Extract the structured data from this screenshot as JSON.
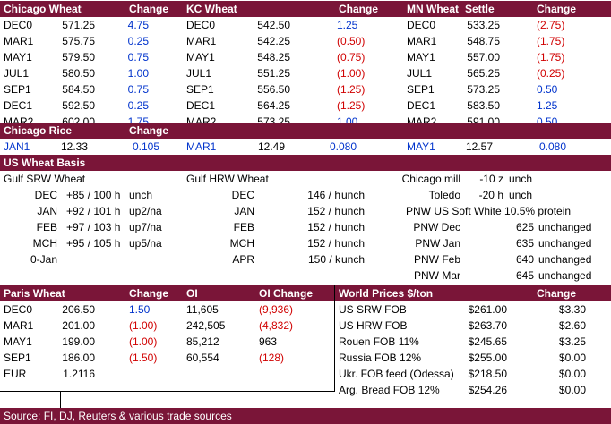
{
  "futures": {
    "headers": [
      "Chicago Wheat",
      "Change",
      "KC Wheat",
      "Change",
      "MN Wheat",
      "Settle",
      "Change"
    ],
    "rows": [
      {
        "c_m": "DEC0",
        "c_p": "571.25",
        "c_ch": "4.75",
        "k_m": "DEC0",
        "k_p": "542.50",
        "k_ch": "1.25",
        "m_m": "DEC0",
        "m_p": "533.25",
        "m_ch": "(2.75)"
      },
      {
        "c_m": "MAR1",
        "c_p": "575.75",
        "c_ch": "0.25",
        "k_m": "MAR1",
        "k_p": "542.25",
        "k_ch": "(0.50)",
        "m_m": "MAR1",
        "m_p": "548.75",
        "m_ch": "(1.75)"
      },
      {
        "c_m": "MAY1",
        "c_p": "579.50",
        "c_ch": "0.75",
        "k_m": "MAY1",
        "k_p": "548.25",
        "k_ch": "(0.75)",
        "m_m": "MAY1",
        "m_p": "557.00",
        "m_ch": "(1.75)"
      },
      {
        "c_m": "JUL1",
        "c_p": "580.50",
        "c_ch": "1.00",
        "k_m": "JUL1",
        "k_p": "551.25",
        "k_ch": "(1.00)",
        "m_m": "JUL1",
        "m_p": "565.25",
        "m_ch": "(0.25)"
      },
      {
        "c_m": "SEP1",
        "c_p": "584.50",
        "c_ch": "0.75",
        "k_m": "SEP1",
        "k_p": "556.50",
        "k_ch": "(1.25)",
        "m_m": "SEP1",
        "m_p": "573.25",
        "m_ch": "0.50"
      },
      {
        "c_m": "DEC1",
        "c_p": "592.50",
        "c_ch": "0.25",
        "k_m": "DEC1",
        "k_p": "564.25",
        "k_ch": "(1.25)",
        "m_m": "DEC1",
        "m_p": "583.50",
        "m_ch": "1.25"
      },
      {
        "c_m": "MAR2",
        "c_p": "602.00",
        "c_ch": "1.75",
        "k_m": "MAR2",
        "k_p": "573.25",
        "k_ch": "1.00",
        "m_m": "MAR2",
        "m_p": "591.00",
        "m_ch": "0.50"
      }
    ]
  },
  "rice": {
    "title": "Chicago Rice",
    "change": "Change",
    "items": [
      {
        "m": "JAN1",
        "p": "12.33",
        "ch": "0.105"
      },
      {
        "m": "MAR1",
        "p": "12.49",
        "ch": "0.080"
      },
      {
        "m": "MAY1",
        "p": "12.57",
        "ch": "0.080"
      }
    ]
  },
  "basis": {
    "title": "US Wheat Basis",
    "gulf_srw_title": "Gulf SRW Wheat",
    "gulf_hrw_title": "Gulf HRW Wheat",
    "srw": [
      {
        "m": "DEC",
        "v": "+85 / 100 h",
        "s": "unch"
      },
      {
        "m": "JAN",
        "v": "+92 / 101 h",
        "s": "up2/na"
      },
      {
        "m": "FEB",
        "v": "+97 / 103 h",
        "s": "up7/na"
      },
      {
        "m": "MCH",
        "v": "+95 / 105 h",
        "s": "up5/na"
      },
      {
        "m": "0-Jan",
        "v": "",
        "s": ""
      }
    ],
    "hrw": [
      {
        "m": "DEC",
        "v": "146 / h",
        "s": "unch"
      },
      {
        "m": "JAN",
        "v": "152 / h",
        "s": "unch"
      },
      {
        "m": "FEB",
        "v": "152 / h",
        "s": "unch"
      },
      {
        "m": "MCH",
        "v": "152 / h",
        "s": "unch"
      },
      {
        "m": "APR",
        "v": "150 / k",
        "s": "unch"
      }
    ],
    "chicago_mill": {
      "label": "Chicago mill",
      "v": "-10 z",
      "s": "unch"
    },
    "toledo": {
      "label": "Toledo",
      "v": "-20 h",
      "s": "unch"
    },
    "pnw_title": "PNW US Soft White 10.5% protein",
    "pnw": [
      {
        "m": "PNW Dec",
        "v": "625",
        "s": "unchanged"
      },
      {
        "m": "PNW Jan",
        "v": "635",
        "s": "unchanged"
      },
      {
        "m": "PNW Feb",
        "v": "640",
        "s": "unchanged"
      },
      {
        "m": "PNW Mar",
        "v": "645",
        "s": "unchanged"
      }
    ]
  },
  "paris": {
    "headers": [
      "Paris Wheat",
      "Change",
      "OI",
      "OI Change"
    ],
    "rows": [
      {
        "m": "DEC0",
        "p": "206.50",
        "ch": "1.50",
        "oi": "11,605",
        "oich": "(9,936)"
      },
      {
        "m": "MAR1",
        "p": "201.00",
        "ch": "(1.00)",
        "oi": "242,505",
        "oich": "(4,832)"
      },
      {
        "m": "MAY1",
        "p": "199.00",
        "ch": "(1.00)",
        "oi": "85,212",
        "oich": "963"
      },
      {
        "m": "SEP1",
        "p": "186.00",
        "ch": "(1.50)",
        "oi": "60,554",
        "oich": "(128)"
      }
    ],
    "eur": {
      "label": "EUR",
      "v": "1.2116"
    }
  },
  "world": {
    "title": "World Prices $/ton",
    "change": "Change",
    "rows": [
      {
        "n": "US SRW FOB",
        "p": "$261.00",
        "ch": "$3.30"
      },
      {
        "n": "US HRW FOB",
        "p": "$263.70",
        "ch": "$2.60"
      },
      {
        "n": "Rouen FOB 11%",
        "p": "$245.65",
        "ch": "$3.25"
      },
      {
        "n": "Russia FOB 12%",
        "p": "$255.00",
        "ch": "$0.00"
      },
      {
        "n": "Ukr. FOB feed (Odessa)",
        "p": "$218.50",
        "ch": "$0.00"
      },
      {
        "n": "Arg. Bread FOB 12%",
        "p": "$254.26",
        "ch": "$0.00"
      }
    ]
  },
  "footer": "Source: FI, DJ, Reuters & various trade sources",
  "colors": {
    "header_bg": "#7a1538",
    "positive": "#0033cc",
    "negative": "#d00000"
  }
}
